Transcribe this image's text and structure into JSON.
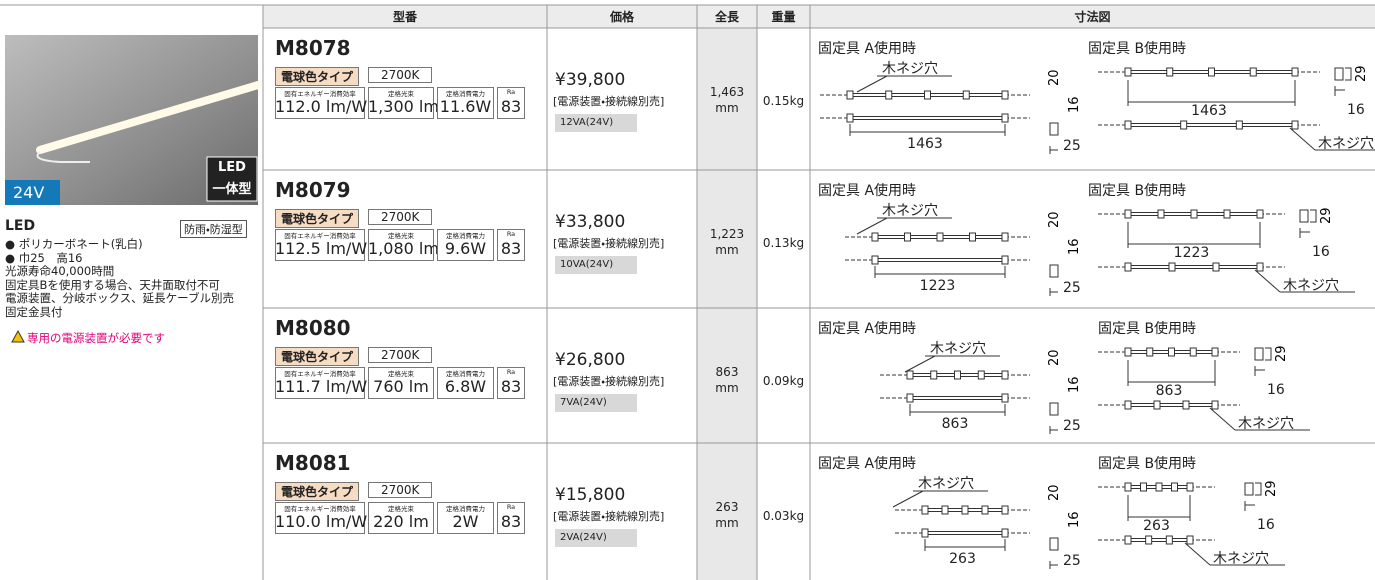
{
  "header": {
    "columns": [
      "型番",
      "価格",
      "全長",
      "重量",
      "寸法図"
    ]
  },
  "product": {
    "badge": [
      "LED",
      "一体型"
    ],
    "voltage": "24V",
    "name": "LED",
    "tag": "防雨・防湿型",
    "notes": [
      "● ポリカーボネート(乳白)",
      "● 巾25　高16",
      "光源寿命40,000時間",
      "固定具Bを使用する場合、天井面取付不可",
      "電源装置、分岐ボックス、延長ケーブル別売",
      "固定金具付"
    ],
    "warning": "専用の電源装置が必要です"
  },
  "spec_labels": [
    "固有エネルギー消費効率",
    "定格光束",
    "定格消費電力",
    "Ra"
  ],
  "length_unit": "mm",
  "diagram_labels": {
    "a": "固定具 A使用時",
    "b": "固定具 B使用時",
    "hole": "木ネジ穴",
    "a_height": "20",
    "a_width_side": "16",
    "a_depth": "25",
    "b_height": "29",
    "b_width": "16"
  },
  "rows": [
    {
      "model": "M8078",
      "type": "電球色タイプ",
      "color_temp": "2700K",
      "specs": [
        "112.0 lm/W",
        "1,300 lm",
        "11.6W",
        "83"
      ],
      "price": "¥39,800",
      "price_note": "[電源装置・接続線別売]",
      "power": "12VA(24V)",
      "length": "1,463",
      "weight": "0.15kg",
      "dim": "1463"
    },
    {
      "model": "M8079",
      "type": "電球色タイプ",
      "color_temp": "2700K",
      "specs": [
        "112.5 lm/W",
        "1,080 lm",
        "9.6W",
        "83"
      ],
      "price": "¥33,800",
      "price_note": "[電源装置・接続線別売]",
      "power": "10VA(24V)",
      "length": "1,223",
      "weight": "0.13kg",
      "dim": "1223"
    },
    {
      "model": "M8080",
      "type": "電球色タイプ",
      "color_temp": "2700K",
      "specs": [
        "111.7 lm/W",
        "760 lm",
        "6.8W",
        "83"
      ],
      "price": "¥26,800",
      "price_note": "[電源装置・接続線別売]",
      "power": "7VA(24V)",
      "length": "863",
      "weight": "0.09kg",
      "dim": "863"
    },
    {
      "model": "M8081",
      "type": "電球色タイプ",
      "color_temp": "2700K",
      "specs": [
        "110.0 lm/W",
        "220 lm",
        "2W",
        "83"
      ],
      "price": "¥15,800",
      "price_note": "[電源装置・接続線別売]",
      "power": "2VA(24V)",
      "length": "263",
      "weight": "0.03kg",
      "dim": "263"
    }
  ]
}
